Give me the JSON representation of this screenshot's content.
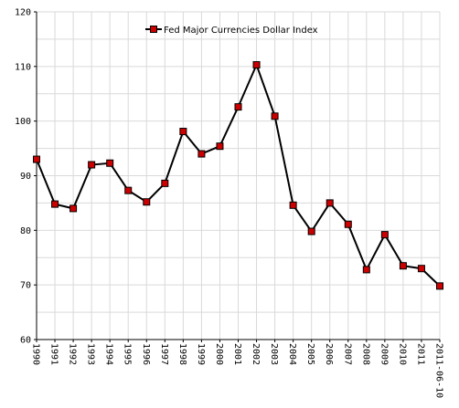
{
  "chart_data": {
    "type": "line",
    "title": "",
    "xlabel": "",
    "ylabel": "",
    "categories": [
      "1990",
      "1991",
      "1992",
      "1993",
      "1994",
      "1995",
      "1996",
      "1997",
      "1998",
      "1999",
      "2000",
      "2001",
      "2002",
      "2003",
      "2004",
      "2005",
      "2006",
      "2007",
      "2008",
      "2009",
      "2010",
      "2011",
      "2011-06-10"
    ],
    "series": [
      {
        "name": "Fed Major Currencies Dollar Index",
        "values": [
          93,
          84.8,
          84,
          92,
          92.3,
          87.3,
          85.2,
          88.6,
          98.1,
          94,
          95.4,
          102.6,
          110.3,
          100.9,
          84.6,
          79.8,
          85,
          81.1,
          72.8,
          79.2,
          73.5,
          73,
          69.8
        ]
      }
    ],
    "ylim": [
      60,
      120
    ],
    "yticks": [
      "60",
      "70",
      "80",
      "90",
      "100",
      "110",
      "120"
    ],
    "grid": true,
    "legend": "top-left",
    "colors": {
      "line": "#000000",
      "marker": "#cc0000",
      "grid": "#d9d9d9"
    }
  }
}
